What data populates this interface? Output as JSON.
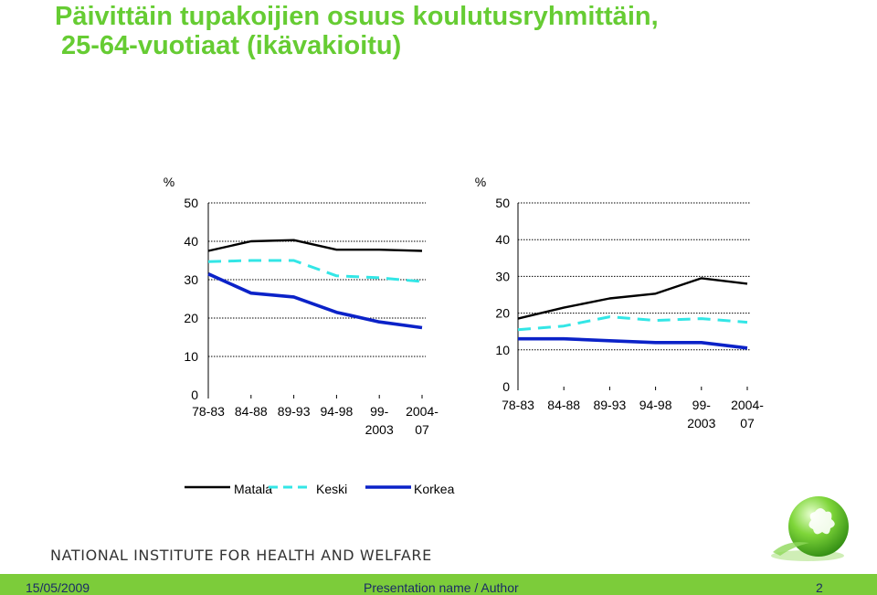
{
  "title": {
    "line1": "Päivittäin tupakoijien osuus koulutusryhmittäin,",
    "line2": "25-64-vuotiaat (ikävakioitu)"
  },
  "institute": "NATIONAL INSTITUTE FOR HEALTH AND WELFARE",
  "footer": {
    "date": "15/05/2009",
    "presentation": "Presentation name / Author",
    "page": "2"
  },
  "colors": {
    "title": "#66cc33",
    "footer_bg": "#7ccc3a",
    "matala": "#000000",
    "keski": "#33e6e6",
    "korkea": "#0b22c8"
  },
  "chart_data": [
    {
      "type": "line",
      "panel": "left",
      "ylabel": "%",
      "ylim": [
        0,
        50
      ],
      "yticks": [
        "0",
        "10",
        "20",
        "30",
        "40",
        "50"
      ],
      "categories": [
        [
          "78-83"
        ],
        [
          "84-88"
        ],
        [
          "89-93"
        ],
        [
          "94-98"
        ],
        [
          "99-",
          "2003"
        ],
        [
          "2004-",
          "07"
        ]
      ],
      "grid": true,
      "series": [
        {
          "name": "Matala",
          "values": [
            37.5,
            40,
            40.3,
            37.8,
            37.8,
            37.5
          ]
        },
        {
          "name": "Keski",
          "values": [
            34.7,
            35,
            35,
            31,
            30.5,
            29.5
          ]
        },
        {
          "name": "Korkea",
          "values": [
            31.5,
            26.5,
            25.5,
            21.5,
            19,
            17.5
          ]
        }
      ]
    },
    {
      "type": "line",
      "panel": "right",
      "ylabel": "%",
      "ylim": [
        0,
        50
      ],
      "yticks": [
        "0",
        "10",
        "20",
        "30",
        "40",
        "50"
      ],
      "categories": [
        [
          "78-83"
        ],
        [
          "84-88"
        ],
        [
          "89-93"
        ],
        [
          "94-98"
        ],
        [
          "99-",
          "2003"
        ],
        [
          "2004-",
          "07"
        ]
      ],
      "grid": true,
      "series": [
        {
          "name": "Matala",
          "values": [
            18.5,
            21.5,
            24,
            25.3,
            29.5,
            28
          ]
        },
        {
          "name": "Keski",
          "values": [
            15.5,
            16.5,
            19,
            18,
            18.5,
            17.5
          ]
        },
        {
          "name": "Korkea",
          "values": [
            13,
            13,
            12.5,
            12,
            12,
            10.5
          ]
        }
      ]
    }
  ],
  "legend": {
    "position": "bottom",
    "items": [
      {
        "name": "Matala"
      },
      {
        "name": "Keski"
      },
      {
        "name": "Korkea"
      }
    ]
  }
}
